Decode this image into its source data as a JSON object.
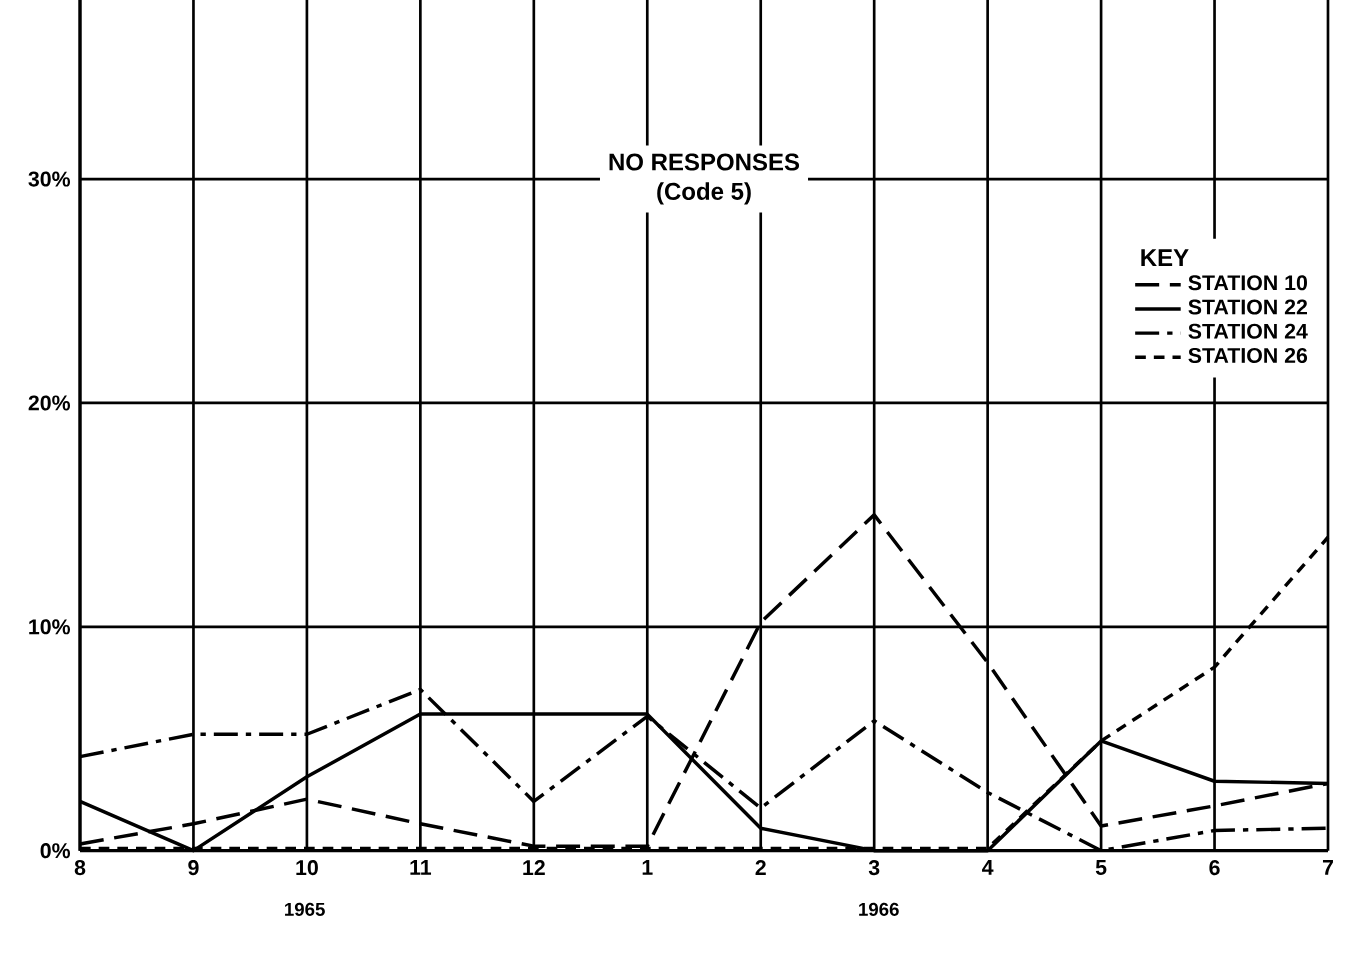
{
  "chart_data": {
    "type": "line",
    "title": "NO RESPONSES",
    "subtitle": "(Code 5)",
    "categories": [
      "8",
      "9",
      "10",
      "11",
      "12",
      "1",
      "2",
      "3",
      "4",
      "5",
      "6",
      "7"
    ],
    "series": [
      {
        "name": "STATION 10",
        "color": "#000000",
        "line_style": "long dashed",
        "values": [
          0.3,
          1.2,
          2.3,
          1.2,
          0.2,
          0.2,
          10.2,
          15,
          8.4,
          1.1,
          2,
          3
        ]
      },
      {
        "name": "STATION 22",
        "color": "#000000",
        "line_style": "solid",
        "values": [
          2.2,
          0,
          3.3,
          6.1,
          6.1,
          6.1,
          1,
          0,
          0,
          4.9,
          3.1,
          3
        ]
      },
      {
        "name": "STATION 24",
        "color": "#000000",
        "line_style": "dashdot",
        "values": [
          4.2,
          5.2,
          5.2,
          7.2,
          2.2,
          6,
          1.9,
          5.8,
          2.6,
          0,
          0.9,
          1
        ]
      },
      {
        "name": "STATION 26",
        "color": "#000000",
        "line_style": "dashed",
        "values": [
          0.1,
          0.1,
          0.1,
          0.1,
          0.1,
          0.1,
          0.1,
          0.1,
          0.1,
          4.9,
          8.2,
          14
        ]
      }
    ],
    "ylim": [
      0,
      38
    ],
    "yticks": [
      {
        "value": 0,
        "label": "0%"
      },
      {
        "value": 10,
        "label": "10%"
      },
      {
        "value": 20,
        "label": "20%"
      },
      {
        "value": 30,
        "label": "30%"
      }
    ],
    "grid": true,
    "legend": "right",
    "legend_title": "KEY",
    "marker": "none",
    "annotations": [
      "1965",
      "1966"
    ]
  }
}
